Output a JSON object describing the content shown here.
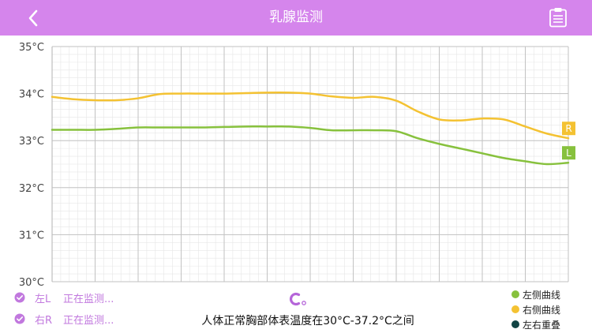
{
  "header": {
    "title": "乳腺监测",
    "back_icon": "chevron-left-icon",
    "report_icon": "clipboard-icon",
    "background": "#d585ec"
  },
  "chart_data": {
    "type": "line",
    "y_tick_labels": [
      "35°C",
      "34°C",
      "33°C",
      "32°C",
      "31°C",
      "30°C"
    ],
    "ylim": [
      30,
      35
    ],
    "grid": true,
    "series": [
      {
        "marker_label": "L",
        "color": "#87c13d",
        "x": [
          0,
          1,
          2,
          3,
          4,
          5,
          6,
          7,
          8,
          9,
          10,
          11,
          12,
          13,
          14,
          15,
          16,
          17,
          18,
          19,
          20,
          21,
          22,
          23,
          24
        ],
        "values": [
          33.23,
          33.23,
          33.23,
          33.25,
          33.28,
          33.28,
          33.28,
          33.28,
          33.29,
          33.3,
          33.3,
          33.3,
          33.27,
          33.22,
          33.22,
          33.22,
          33.2,
          33.05,
          32.93,
          32.83,
          32.73,
          32.63,
          32.56,
          32.5,
          32.53
        ]
      },
      {
        "marker_label": "R",
        "color": "#f4c232",
        "x": [
          0,
          1,
          2,
          3,
          4,
          5,
          6,
          7,
          8,
          9,
          10,
          11,
          12,
          13,
          14,
          15,
          16,
          17,
          18,
          19,
          20,
          21,
          22,
          23,
          24
        ],
        "values": [
          33.93,
          33.88,
          33.86,
          33.86,
          33.9,
          33.99,
          34.0,
          34.0,
          34.0,
          34.01,
          34.02,
          34.02,
          34.0,
          33.94,
          33.91,
          33.93,
          33.85,
          33.62,
          33.45,
          33.43,
          33.47,
          33.45,
          33.3,
          33.15,
          33.05
        ]
      }
    ]
  },
  "status": [
    {
      "side": "左L",
      "text": "正在监测..."
    },
    {
      "side": "右R",
      "text": "正在监测..."
    }
  ],
  "note": "人体正常胸部体表温度在30°C-37.2°C之间",
  "legend": [
    {
      "label": "左侧曲线",
      "color": "#87c13d"
    },
    {
      "label": "右侧曲线",
      "color": "#f4c232"
    },
    {
      "label": "左右重叠",
      "color": "#114444"
    }
  ],
  "colors": {
    "accent": "#c178de",
    "brand_logo": "#b565d9"
  }
}
